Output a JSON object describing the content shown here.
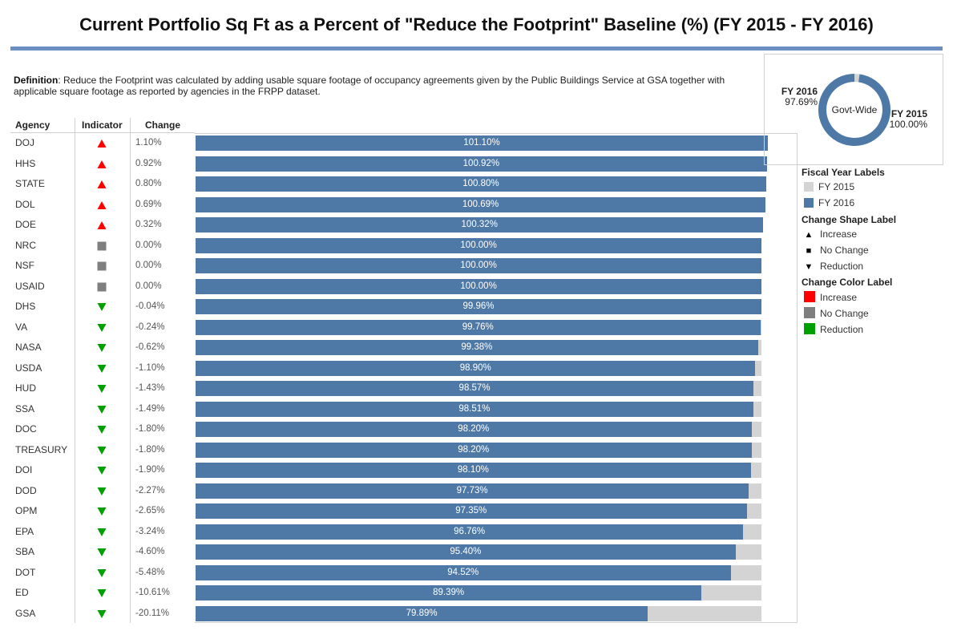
{
  "title": "Current Portfolio Sq Ft as a Percent of \"Reduce the Footprint\" Baseline (%) (FY 2015 - FY 2016)",
  "definition": {
    "label": "Definition",
    "text": ": Reduce the Footprint was calculated by adding usable square footage of occupancy agreements given by the Public Buildings Service at GSA together with applicable square footage as reported by agencies in the FRPP dataset."
  },
  "columns": {
    "agency": "Agency",
    "indicator": "Indicator",
    "change": "Change"
  },
  "colors": {
    "fy2015": "#d4d4d4",
    "fy2016": "#4e79a7",
    "increase": "#ff0000",
    "no_change": "#7f7f7f",
    "reduction": "#00a000"
  },
  "chart_data": {
    "type": "bar",
    "orientation": "horizontal",
    "xlim": [
      0,
      101.1
    ],
    "categories": [
      "DOJ",
      "HHS",
      "STATE",
      "DOL",
      "DOE",
      "NRC",
      "NSF",
      "USAID",
      "DHS",
      "VA",
      "NASA",
      "USDA",
      "HUD",
      "SSA",
      "DOC",
      "TREASURY",
      "DOI",
      "DOD",
      "OPM",
      "EPA",
      "SBA",
      "DOT",
      "ED",
      "GSA"
    ],
    "series": [
      {
        "name": "FY 2015",
        "values": [
          100,
          100,
          100,
          100,
          100,
          100,
          100,
          100,
          100,
          100,
          100,
          100,
          100,
          100,
          100,
          100,
          100,
          100,
          100,
          100,
          100,
          100,
          100,
          100
        ]
      },
      {
        "name": "FY 2016",
        "values": [
          101.1,
          100.92,
          100.8,
          100.69,
          100.32,
          100.0,
          100.0,
          100.0,
          99.96,
          99.76,
          99.38,
          98.9,
          98.57,
          98.51,
          98.2,
          98.2,
          98.1,
          97.73,
          97.35,
          96.76,
          95.4,
          94.52,
          89.39,
          79.89
        ]
      }
    ],
    "data_labels": [
      "101.10%",
      "100.92%",
      "100.80%",
      "100.69%",
      "100.32%",
      "100.00%",
      "100.00%",
      "100.00%",
      "99.96%",
      "99.76%",
      "99.38%",
      "98.90%",
      "98.57%",
      "98.51%",
      "98.20%",
      "98.20%",
      "98.10%",
      "97.73%",
      "97.35%",
      "96.76%",
      "95.40%",
      "94.52%",
      "89.39%",
      "79.89%"
    ],
    "change": [
      "1.10%",
      "0.92%",
      "0.80%",
      "0.69%",
      "0.32%",
      "0.00%",
      "0.00%",
      "0.00%",
      "-0.04%",
      "-0.24%",
      "-0.62%",
      "-1.10%",
      "-1.43%",
      "-1.49%",
      "-1.80%",
      "-1.80%",
      "-1.90%",
      "-2.27%",
      "-2.65%",
      "-3.24%",
      "-4.60%",
      "-5.48%",
      "-10.61%",
      "-20.11%"
    ],
    "indicator": [
      "increase",
      "increase",
      "increase",
      "increase",
      "increase",
      "none",
      "none",
      "none",
      "reduction",
      "reduction",
      "reduction",
      "reduction",
      "reduction",
      "reduction",
      "reduction",
      "reduction",
      "reduction",
      "reduction",
      "reduction",
      "reduction",
      "reduction",
      "reduction",
      "reduction",
      "reduction"
    ]
  },
  "donut": {
    "center_label": "Govt-Wide",
    "fy2016_label": "FY 2016",
    "fy2016_value": "97.69%",
    "fy2015_label": "FY 2015",
    "fy2015_value": "100.00%",
    "fy2016_pct": 97.69,
    "fy2015_pct": 100.0
  },
  "legend": {
    "fiscal_title": "Fiscal Year Labels",
    "fiscal_items": [
      "FY 2015",
      "FY 2016"
    ],
    "shape_title": "Change Shape Label",
    "shape_items": [
      "Increase",
      "No Change",
      "Reduction"
    ],
    "color_title": "Change Color Label",
    "color_items": [
      "Increase",
      "No Change",
      "Reduction"
    ]
  }
}
